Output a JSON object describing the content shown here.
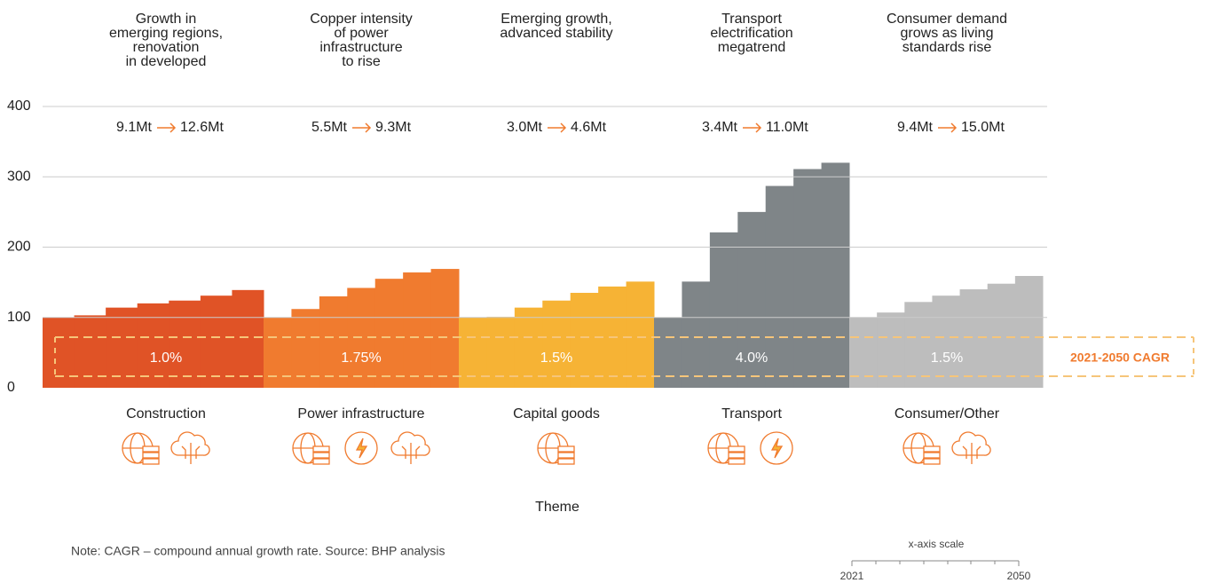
{
  "chart_data": {
    "type": "step-bar",
    "headers": [
      [
        "Growth in",
        "emerging regions,",
        "renovation",
        "in developed"
      ],
      [
        "Copper intensity",
        "of power",
        "infrastructure",
        "to rise"
      ],
      [
        "Emerging growth,",
        "advanced stability"
      ],
      [
        "Transport",
        "electrification",
        "megatrend"
      ],
      [
        "Consumer demand",
        "grows as living",
        "standards rise"
      ]
    ],
    "demand_from": [
      "9.1Mt",
      "5.5Mt",
      "3.0Mt",
      "3.4Mt",
      "9.4Mt"
    ],
    "demand_to": [
      "12.6Mt",
      "9.3Mt",
      "4.6Mt",
      "11.0Mt",
      "15.0Mt"
    ],
    "cagr_title": "2021-2050 CAGR",
    "cagr": [
      "1.0%",
      "1.75%",
      "1.5%",
      "4.0%",
      "1.5%"
    ],
    "series": [
      {
        "name": "Construction",
        "color": "#e05326",
        "values": [
          100,
          103,
          114,
          120,
          124,
          131,
          139
        ]
      },
      {
        "name": "Power infrastructure",
        "color": "#f07b2f",
        "values": [
          100,
          112,
          130,
          142,
          155,
          164,
          169
        ]
      },
      {
        "name": "Capital goods",
        "color": "#f6b335",
        "values": [
          100,
          101,
          114,
          124,
          135,
          144,
          151
        ]
      },
      {
        "name": "Transport",
        "color": "#7f8588",
        "values": [
          100,
          151,
          221,
          250,
          287,
          311,
          320
        ]
      },
      {
        "name": "Consumer/Other",
        "color": "#bdbdbd",
        "values": [
          100,
          107,
          122,
          131,
          140,
          148,
          159
        ]
      }
    ],
    "ylim": [
      0,
      400
    ],
    "yticks": [
      0,
      100,
      200,
      300,
      400
    ],
    "grid": true,
    "xlabel": "Theme",
    "note": "Note: CAGR – compound annual growth rate. Source: BHP analysis",
    "scale_title": "x-axis scale",
    "scale_start": 2021,
    "scale_end": 2050
  }
}
